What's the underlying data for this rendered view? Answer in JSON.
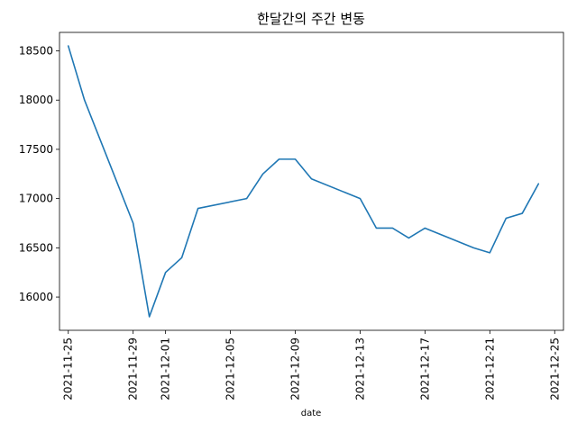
{
  "chart_data": {
    "type": "line",
    "title": "한달간의 주간 변동",
    "xlabel": "date",
    "ylabel": "",
    "x": [
      "2021-11-25",
      "2021-11-26",
      "2021-11-29",
      "2021-11-30",
      "2021-12-01",
      "2021-12-02",
      "2021-12-03",
      "2021-12-06",
      "2021-12-07",
      "2021-12-08",
      "2021-12-09",
      "2021-12-10",
      "2021-12-13",
      "2021-12-14",
      "2021-12-15",
      "2021-12-16",
      "2021-12-17",
      "2021-12-20",
      "2021-12-21",
      "2021-12-22",
      "2021-12-23",
      "2021-12-24"
    ],
    "series": [
      {
        "name": "",
        "color": "#1f77b4",
        "values": [
          18550,
          18000,
          16750,
          15800,
          16250,
          16400,
          16900,
          17000,
          17250,
          17400,
          17400,
          17200,
          17000,
          16700,
          16700,
          16600,
          16700,
          16500,
          16450,
          16800,
          16850,
          17150
        ]
      }
    ],
    "x_ticks": [
      "2021-11-25",
      "2021-11-29",
      "2021-12-01",
      "2021-12-05",
      "2021-12-09",
      "2021-12-13",
      "2021-12-17",
      "2021-12-21",
      "2021-12-25"
    ],
    "y_ticks": [
      16000,
      16500,
      17000,
      17500,
      18000,
      18500
    ],
    "xlim": [
      "2021-11-24T11:00",
      "2021-12-25T13:00"
    ],
    "ylim": [
      15662.5,
      18687.5
    ],
    "grid": false,
    "legend": "none"
  }
}
